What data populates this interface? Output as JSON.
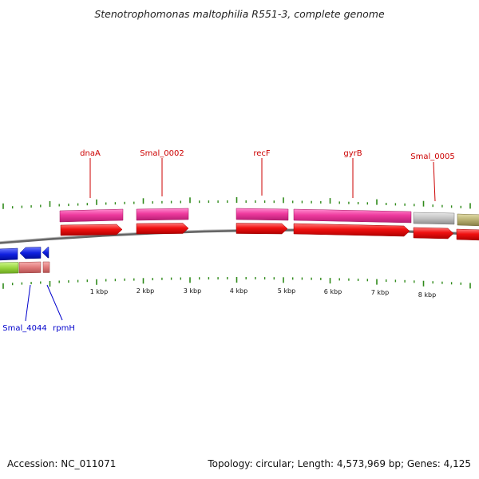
{
  "title": "Stenotrophomonas maltophilia R551-3, complete genome",
  "footer": {
    "accession": "Accession: NC_011071",
    "summary": "Topology: circular; Length: 4,573,969 bp; Genes: 4,125"
  },
  "colors": {
    "background": "#ffffff",
    "backbone": "#777777",
    "ticks": "#2f8a1a",
    "top_label": "#cc0000",
    "bottom_label": "#0000cc",
    "gene_pink": "#ee3a9e",
    "cds_red": "#ee1010",
    "gene_gray": "#bdbdbd",
    "gene_olive": "#b8b072",
    "bottom_blue": "#1020e0",
    "bottom_salmon": "#e07a7a",
    "bottom_green": "#9ad640"
  },
  "scale_labels": [
    "1 kbp",
    "2 kbp",
    "3 kbp",
    "4 kbp",
    "5 kbp",
    "6 kbp",
    "7 kbp",
    "8 kbp"
  ],
  "top_genes": [
    {
      "name": "dnaA"
    },
    {
      "name": "Smal_0002"
    },
    {
      "name": "recF"
    },
    {
      "name": "gyrB"
    },
    {
      "name": "Smal_0005"
    }
  ],
  "bottom_genes": [
    {
      "name": "Smal_4044"
    },
    {
      "name": "rpmH"
    }
  ]
}
